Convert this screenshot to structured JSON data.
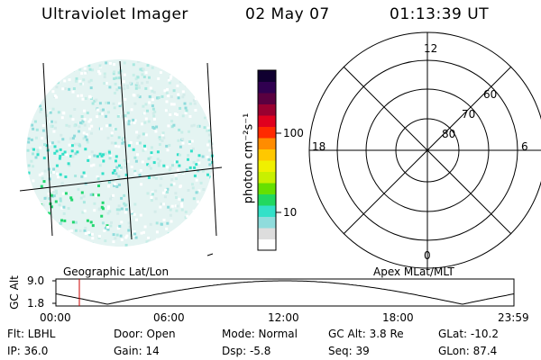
{
  "header": {
    "instrument": "Ultraviolet Imager",
    "date": "02 May 07",
    "time": "01:13:39 UT"
  },
  "colorbar": {
    "label": "photon cm⁻²s⁻¹",
    "tick_100": "100",
    "tick_10": "10",
    "colors": [
      "#ffffff",
      "#dddddd",
      "#8fdcdc",
      "#33e0c8",
      "#22d860",
      "#66e000",
      "#c8f000",
      "#f0f000",
      "#ffc800",
      "#ff8c00",
      "#ff2a00",
      "#e0001e",
      "#9a0030",
      "#5a0040",
      "#300050",
      "#100030"
    ]
  },
  "left_panel": {
    "caption": "Geographic Lat/Lon"
  },
  "right_panel": {
    "caption": "Apex MLat/MLT",
    "mlt_labels": {
      "top": "12",
      "bottom": "0",
      "left": "18",
      "right": "6"
    },
    "lat_labels": [
      "60",
      "70",
      "80"
    ]
  },
  "timeline": {
    "axis_title": "GC Alt",
    "y_max_label": "9.0",
    "y_min_label": "1.8",
    "x_labels": [
      "00:00",
      "06:00",
      "12:00",
      "18:00",
      "23:59"
    ],
    "current_hour": 1.228,
    "marker_color": "#cc0000"
  },
  "info": {
    "filter": "Flt: LBHL",
    "ip": "IP: 36.0",
    "door": "Door: Open",
    "gain": "Gain: 14",
    "mode": "Mode: Normal",
    "dsp": "Dsp:   -5.8",
    "gc_alt": "GC Alt: 3.8 Re",
    "seq": "Seq: 39",
    "glat": "GLat: -10.2",
    "glon": "GLon:  87.4"
  }
}
